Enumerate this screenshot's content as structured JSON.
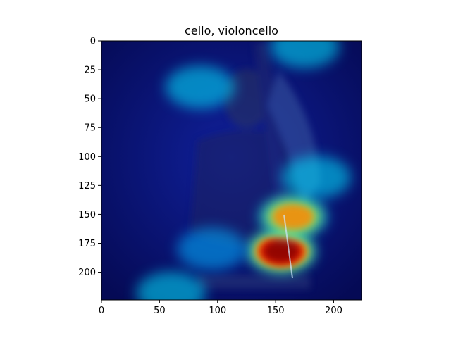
{
  "chart_data": {
    "type": "heatmap",
    "title": "cello, violoncello",
    "xlabel": "",
    "ylabel": "",
    "xlim": [
      0,
      224
    ],
    "ylim": [
      224,
      0
    ],
    "x_ticks": [
      0,
      50,
      100,
      150,
      200
    ],
    "y_ticks": [
      0,
      25,
      50,
      75,
      100,
      125,
      150,
      175,
      200
    ],
    "colormap": "jet",
    "overlay_description": "Grad-CAM style heatmap overlaid on a dark photo of a person holding a cello",
    "hotspots": [
      {
        "x": 155,
        "y": 182,
        "intensity": 1.0
      },
      {
        "x": 165,
        "y": 152,
        "intensity": 0.75
      },
      {
        "x": 185,
        "y": 118,
        "intensity": 0.5
      },
      {
        "x": 85,
        "y": 40,
        "intensity": 0.45
      },
      {
        "x": 175,
        "y": 5,
        "intensity": 0.45
      },
      {
        "x": 60,
        "y": 218,
        "intensity": 0.35
      },
      {
        "x": 95,
        "y": 180,
        "intensity": 0.3
      }
    ]
  }
}
